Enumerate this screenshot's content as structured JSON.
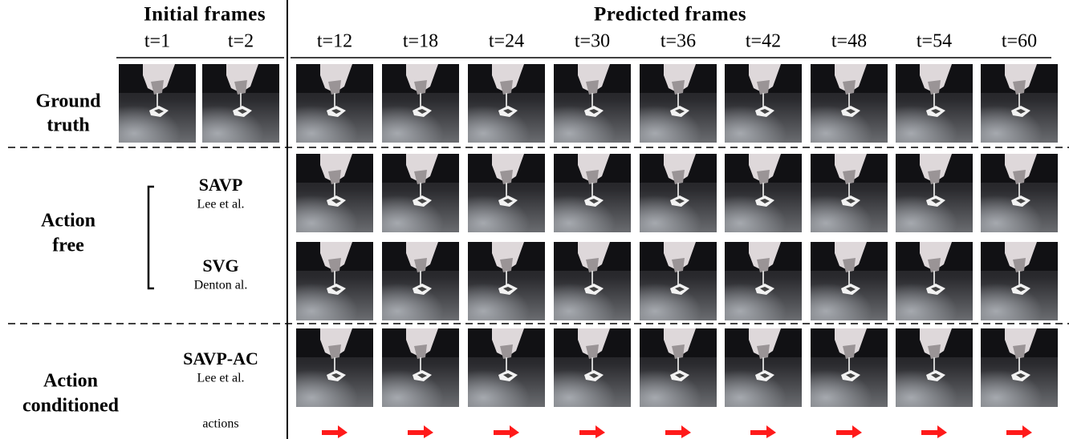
{
  "header": {
    "initial": "Initial frames",
    "predicted": "Predicted frames"
  },
  "initial_times": [
    "t=1",
    "t=2"
  ],
  "predicted_times": [
    "t=12",
    "t=18",
    "t=24",
    "t=30",
    "t=36",
    "t=42",
    "t=48",
    "t=54",
    "t=60"
  ],
  "groups": [
    [
      "Ground",
      "truth"
    ],
    [
      "Action",
      "free"
    ],
    [
      "Action",
      "conditioned"
    ]
  ],
  "methods": [
    {
      "name": "SAVP",
      "cite": "Lee et al."
    },
    {
      "name": "SVG",
      "cite": "Denton al."
    },
    {
      "name": "SAVP-AC",
      "cite": "Lee et al."
    }
  ],
  "actions_label": "actions"
}
